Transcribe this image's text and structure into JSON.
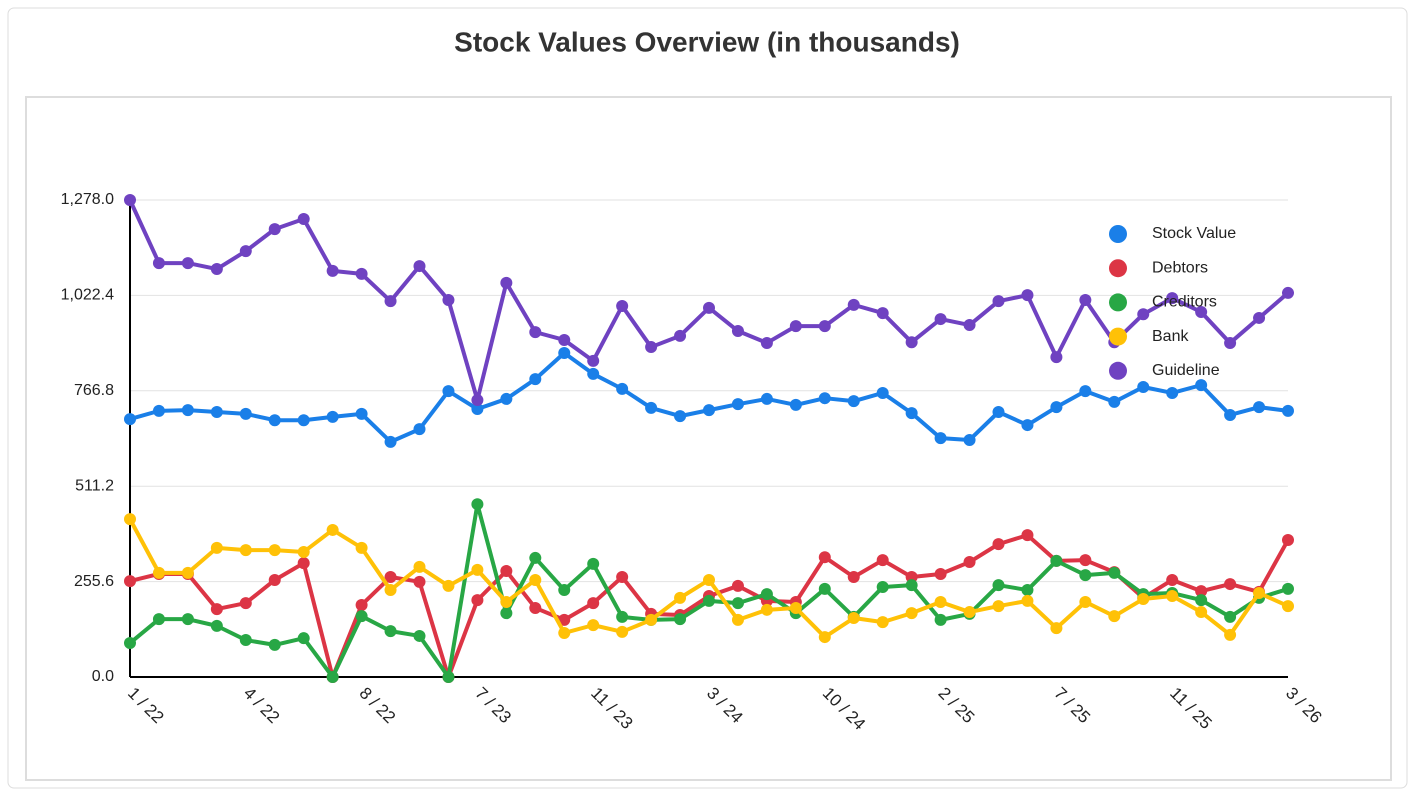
{
  "chart_data": {
    "type": "line",
    "title": "Stock Values Overview (in thousands)",
    "categories": [
      "1 / 22",
      null,
      null,
      null,
      "4 / 22",
      null,
      null,
      null,
      "8 / 22",
      null,
      null,
      null,
      "7 / 23",
      null,
      null,
      null,
      "11 / 23",
      null,
      null,
      null,
      "3 / 24",
      null,
      null,
      null,
      "10 / 24",
      null,
      null,
      null,
      "2 / 25",
      null,
      null,
      null,
      "7 / 25",
      null,
      null,
      null,
      "11 / 25",
      null,
      null,
      null,
      "3 / 26"
    ],
    "series": [
      {
        "name": "Stock Value",
        "color": "#1a7fe8",
        "values": [
          691,
          713,
          715,
          710,
          705,
          688,
          688,
          697,
          705,
          630,
          664,
          766,
          718,
          745,
          798,
          868,
          812,
          772,
          721,
          699,
          715,
          731,
          745,
          729,
          747,
          739,
          761,
          707,
          640,
          635,
          710,
          675,
          723,
          766,
          737,
          777,
          761,
          782,
          702,
          723,
          713
        ]
      },
      {
        "name": "Debtors",
        "color": "#dc3545",
        "values": [
          257,
          276,
          276,
          182,
          198,
          260,
          305,
          0,
          193,
          268,
          255,
          0,
          206,
          284,
          185,
          153,
          198,
          268,
          169,
          166,
          217,
          244,
          204,
          201,
          321,
          268,
          313,
          268,
          276,
          308,
          356,
          380,
          311,
          313,
          281,
          212,
          260,
          230,
          249,
          228,
          367
        ]
      },
      {
        "name": "Creditors",
        "color": "#28a745",
        "values": [
          91,
          155,
          155,
          137,
          99,
          86,
          104,
          0,
          163,
          123,
          110,
          0,
          463,
          171,
          319,
          233,
          303,
          161,
          153,
          155,
          204,
          198,
          222,
          171,
          236,
          161,
          241,
          246,
          153,
          169,
          246,
          233,
          311,
          273,
          279,
          222,
          225,
          206,
          161,
          212,
          236
        ]
      },
      {
        "name": "Bank",
        "color": "#ffc107",
        "values": [
          423,
          279,
          279,
          346,
          340,
          340,
          335,
          394,
          346,
          233,
          295,
          244,
          287,
          201,
          260,
          118,
          139,
          121,
          153,
          212,
          260,
          153,
          180,
          185,
          107,
          158,
          147,
          171,
          201,
          174,
          190,
          204,
          131,
          201,
          163,
          209,
          217,
          174,
          113,
          225,
          190
        ]
      },
      {
        "name": "Guideline",
        "color": "#6f42c1",
        "values": [
          1278,
          1109,
          1109,
          1093,
          1141,
          1200,
          1227,
          1088,
          1080,
          1007,
          1101,
          1010,
          742,
          1056,
          924,
          903,
          847,
          994,
          884,
          914,
          989,
          927,
          895,
          940,
          940,
          997,
          975,
          897,
          959,
          943,
          1007,
          1023,
          857,
          1010,
          897,
          972,
          1015,
          978,
          895,
          962,
          1029
        ]
      }
    ],
    "ylim": [
      0,
      1278
    ],
    "yticks": [
      {
        "value": 0,
        "label": "0.0"
      },
      255.6,
      511.2,
      766.8,
      {
        "value": 1022.4,
        "label": "1,022.4"
      },
      {
        "value": 1278,
        "label": "1,278.0"
      }
    ],
    "grid": true,
    "legend": "top-right"
  }
}
